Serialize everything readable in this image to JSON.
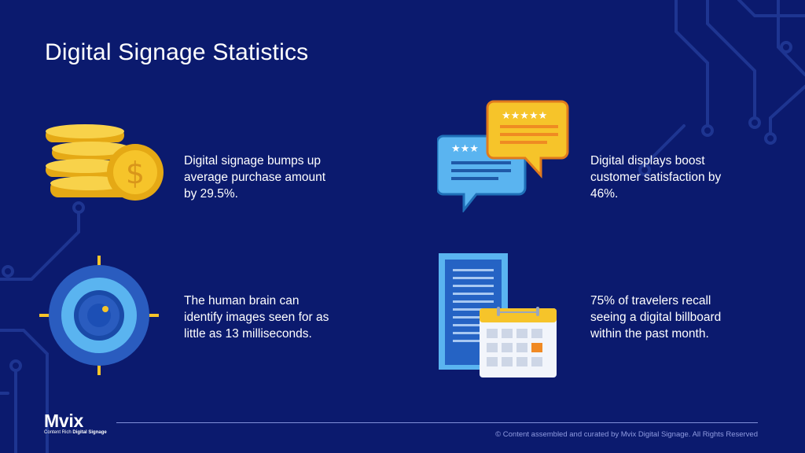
{
  "title": "Digital Signage Statistics",
  "stats": [
    {
      "icon": "coins-dollar-icon",
      "text": "Digital signage bumps up average purchase amount by 29.5%."
    },
    {
      "icon": "review-chat-bubbles-icon",
      "text": "Digital displays boost customer satisfaction by 46%."
    },
    {
      "icon": "target-icon",
      "text": "The human brain can identify images seen for as little as 13 milliseconds."
    },
    {
      "icon": "billboard-calendar-icon",
      "text": "75% of travelers recall seeing a digital billboard within the past month."
    }
  ],
  "footer": {
    "logo_text_main": "Mvi",
    "logo_text_x": "x",
    "logo_tagline_prefix": "Content Rich ",
    "logo_tagline_bold": "Digital Signage",
    "copyright": "© Content assembled and curated by Mvix Digital Signage. All Rights Reserved"
  },
  "colors": {
    "background": "#0b1a6e",
    "gold": "#f6c42a",
    "orange": "#f08a24",
    "light_blue": "#5ab4f0",
    "target_blue": "#2a5cbf"
  }
}
